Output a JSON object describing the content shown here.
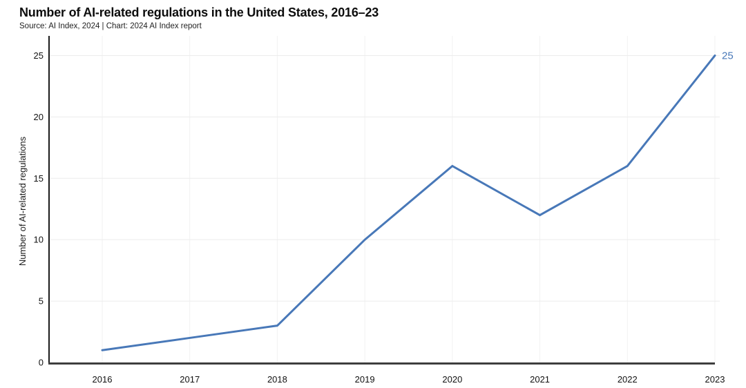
{
  "header": {
    "title": "Number of AI-related regulations in the United States, 2016–23",
    "subtitle": "Source: AI Index, 2024 | Chart: 2024 AI Index report"
  },
  "chart_data": {
    "type": "line",
    "title": "Number of AI-related regulations in the United States, 2016–23",
    "subtitle": "Source: AI Index, 2024 | Chart: 2024 AI Index report",
    "categories": [
      "2016",
      "2017",
      "2018",
      "2019",
      "2020",
      "2021",
      "2022",
      "2023"
    ],
    "values": [
      1,
      2,
      3,
      10,
      16,
      12,
      16,
      25
    ],
    "series_name": "AI-related regulations",
    "xlabel": "",
    "ylabel": "Number of AI-related regulations",
    "ylim": [
      0,
      26.6
    ],
    "yticks": [
      0,
      5,
      10,
      15,
      20,
      25
    ],
    "grid": true,
    "legend": "none",
    "end_label": "25",
    "colors": {
      "line": "#4878b8",
      "end_label": "#4878b8",
      "grid_horizontal": "#ececec",
      "grid_vertical": "#f2f2f2",
      "axis_y": "#1a1a1a",
      "axis_x": "#3d3d3d",
      "text": "#111111",
      "background": "#ffffff"
    }
  }
}
